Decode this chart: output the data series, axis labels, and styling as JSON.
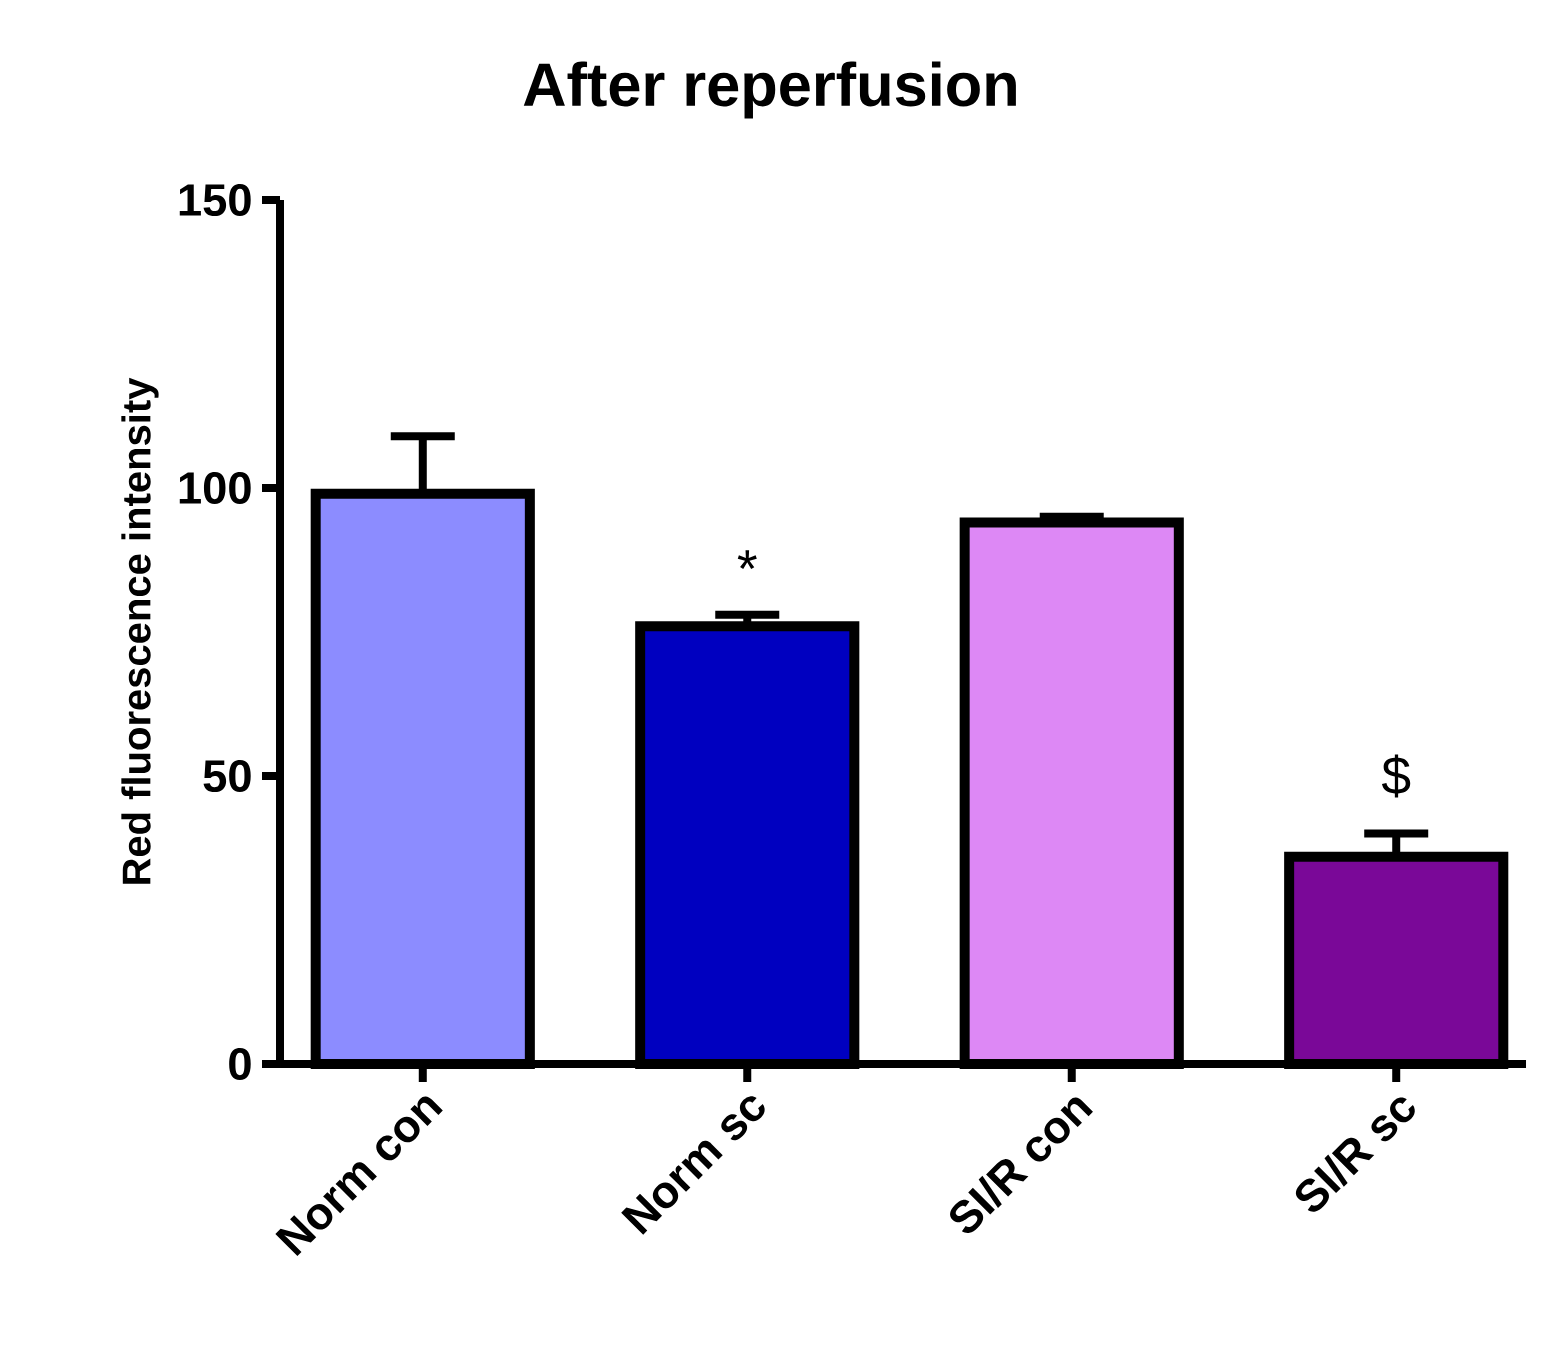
{
  "chart_data": {
    "type": "bar",
    "title": "After reperfusion",
    "ylabel": "Red fluorescence intensity",
    "categories": [
      "Norm con",
      "Norm sc",
      "SI/R con",
      "SI/R sc"
    ],
    "values": [
      99,
      76,
      94,
      36
    ],
    "errors": [
      10,
      2,
      1,
      4
    ],
    "colors": [
      "#8c8cff",
      "#0000c0",
      "#dd88f5",
      "#7a0898"
    ],
    "ylim": [
      0,
      150
    ],
    "yticks": [
      0,
      50,
      100,
      150
    ],
    "annotations": [
      "*",
      "$"
    ],
    "grid": false
  }
}
